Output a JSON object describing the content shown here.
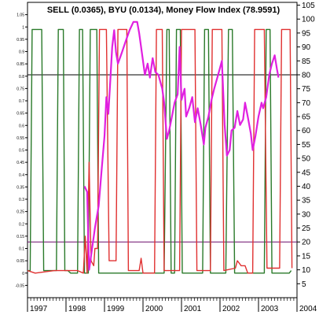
{
  "chart_data": {
    "type": "line",
    "title": "SELL (0.0365), BYU (0.0134), Money Flow Index (78.9591)",
    "x_ticks": [
      "1997",
      "1998",
      "1999",
      "2000",
      "2001",
      "2002",
      "2003",
      "2004"
    ],
    "x_range": [
      1997.0,
      2004.0
    ],
    "right_axis": {
      "ticks": [
        "105",
        "100",
        "95",
        "90",
        "85",
        "80",
        "75",
        "70",
        "65",
        "60",
        "55",
        "50",
        "45",
        "40",
        "35",
        "30",
        "25",
        "20",
        "15",
        "10",
        "5"
      ],
      "ylim": [
        0,
        106
      ]
    },
    "left_axis": {
      "ticks": [
        "1.05",
        "1",
        "0.95",
        "0.9",
        "0.85",
        "0.8",
        "0.75",
        "0.7",
        "0.65",
        "0.6",
        "0.55",
        "0.5",
        "0.45",
        "0.4",
        "0.35",
        "0.3",
        "0.25",
        "0.2",
        "0.15",
        "0.1",
        "0.05",
        "0",
        "-0.05"
      ],
      "ylim": [
        -0.1,
        1.1
      ]
    },
    "reference_lines": [
      {
        "value": 80,
        "color": "#000000"
      },
      {
        "value": 20,
        "color": "#6a0a6a"
      }
    ],
    "grid": false,
    "series": [
      {
        "color": "#2a7a2a",
        "axis": "left",
        "points": [
          [
            1997.0,
            0.01
          ],
          [
            1997.07,
            0.01
          ],
          [
            1997.12,
            0.99
          ],
          [
            1997.37,
            0.99
          ],
          [
            1997.42,
            0.01
          ],
          [
            1997.75,
            0.01
          ],
          [
            1997.8,
            0.99
          ],
          [
            1997.93,
            0.99
          ],
          [
            1997.97,
            0.01
          ],
          [
            1998.05,
            0.01
          ],
          [
            1998.12,
            0.0
          ],
          [
            1998.3,
            0.0
          ],
          [
            1998.35,
            0.99
          ],
          [
            1998.43,
            0.99
          ],
          [
            1998.48,
            0.0
          ],
          [
            1998.58,
            0.0
          ],
          [
            1998.63,
            0.99
          ],
          [
            1998.8,
            0.99
          ],
          [
            1998.85,
            0.0
          ],
          [
            1999.6,
            0.0
          ],
          [
            1999.65,
            0.0
          ],
          [
            2000.55,
            0.0
          ],
          [
            2000.62,
            0.99
          ],
          [
            2000.68,
            0.99
          ],
          [
            2000.73,
            0.0
          ],
          [
            2000.82,
            0.0
          ],
          [
            2000.87,
            0.99
          ],
          [
            2000.97,
            0.99
          ],
          [
            2001.02,
            0.0
          ],
          [
            2001.55,
            0.0
          ],
          [
            2001.6,
            0.99
          ],
          [
            2001.7,
            0.99
          ],
          [
            2001.75,
            0.0
          ],
          [
            2002.15,
            0.0
          ],
          [
            2002.22,
            0.99
          ],
          [
            2002.32,
            0.99
          ],
          [
            2002.38,
            0.0
          ],
          [
            2003.15,
            0.0
          ],
          [
            2003.2,
            0.99
          ],
          [
            2003.3,
            0.99
          ],
          [
            2003.35,
            0.0
          ],
          [
            2003.8,
            0.0
          ],
          [
            2003.85,
            0.01
          ]
        ]
      },
      {
        "color": "#e03030",
        "axis": "left",
        "points": [
          [
            1997.0,
            0.01
          ],
          [
            1997.2,
            0.0
          ],
          [
            1997.7,
            0.01
          ],
          [
            1998.0,
            0.01
          ],
          [
            1998.3,
            0.01
          ],
          [
            1998.45,
            0.0
          ],
          [
            1998.5,
            0.15
          ],
          [
            1998.55,
            0.0
          ],
          [
            1998.6,
            0.45
          ],
          [
            1998.65,
            0.05
          ],
          [
            1998.72,
            0.03
          ],
          [
            1998.75,
            0.1
          ],
          [
            1998.82,
            0.1
          ],
          [
            1998.87,
            0.99
          ],
          [
            1999.05,
            0.99
          ],
          [
            1999.12,
            0.05
          ],
          [
            1999.3,
            0.05
          ],
          [
            1999.35,
            0.99
          ],
          [
            1999.58,
            0.99
          ],
          [
            1999.62,
            0.01
          ],
          [
            1999.9,
            0.01
          ],
          [
            1999.95,
            0.06
          ],
          [
            2000.0,
            0.0
          ],
          [
            2000.3,
            0.0
          ],
          [
            2000.35,
            0.99
          ],
          [
            2000.5,
            0.99
          ],
          [
            2000.55,
            0.01
          ],
          [
            2000.95,
            0.01
          ],
          [
            2001.0,
            0.99
          ],
          [
            2001.35,
            0.99
          ],
          [
            2001.4,
            0.01
          ],
          [
            2001.75,
            0.01
          ],
          [
            2001.8,
            0.99
          ],
          [
            2002.05,
            0.99
          ],
          [
            2002.1,
            0.01
          ],
          [
            2002.4,
            0.02
          ],
          [
            2002.45,
            0.05
          ],
          [
            2002.55,
            0.03
          ],
          [
            2002.65,
            0.03
          ],
          [
            2002.72,
            0.0
          ],
          [
            2002.85,
            0.0
          ],
          [
            2002.9,
            0.99
          ],
          [
            2003.15,
            0.99
          ],
          [
            2003.22,
            0.02
          ],
          [
            2003.55,
            0.02
          ],
          [
            2003.6,
            0.99
          ],
          [
            2003.82,
            0.99
          ],
          [
            2003.87,
            0.02
          ]
        ]
      },
      {
        "color": "#e020e0",
        "axis": "right",
        "points": [
          [
            1998.48,
            40
          ],
          [
            1998.55,
            38
          ],
          [
            1998.6,
            10
          ],
          [
            1998.65,
            15
          ],
          [
            1998.75,
            25
          ],
          [
            1998.85,
            33
          ],
          [
            1998.92,
            45
          ],
          [
            1999.0,
            58
          ],
          [
            1999.05,
            72
          ],
          [
            1999.1,
            66
          ],
          [
            1999.15,
            78
          ],
          [
            1999.2,
            90
          ],
          [
            1999.25,
            96
          ],
          [
            1999.3,
            88
          ],
          [
            1999.35,
            84
          ],
          [
            1999.45,
            88
          ],
          [
            1999.55,
            92
          ],
          [
            1999.65,
            96
          ],
          [
            1999.75,
            99
          ],
          [
            1999.85,
            99
          ],
          [
            1999.9,
            95
          ],
          [
            2000.0,
            85
          ],
          [
            2000.05,
            80
          ],
          [
            2000.12,
            84
          ],
          [
            2000.18,
            79
          ],
          [
            2000.25,
            86
          ],
          [
            2000.32,
            81
          ],
          [
            2000.4,
            80
          ],
          [
            2000.5,
            75
          ],
          [
            2000.55,
            70
          ],
          [
            2000.62,
            57
          ],
          [
            2000.68,
            60
          ],
          [
            2000.75,
            65
          ],
          [
            2000.82,
            70
          ],
          [
            2000.9,
            73
          ],
          [
            2000.95,
            90
          ],
          [
            2001.0,
            71
          ],
          [
            2001.08,
            75
          ],
          [
            2001.12,
            65
          ],
          [
            2001.2,
            68
          ],
          [
            2001.28,
            72
          ],
          [
            2001.35,
            63
          ],
          [
            2001.42,
            68
          ],
          [
            2001.5,
            62
          ],
          [
            2001.58,
            55
          ],
          [
            2001.62,
            61
          ],
          [
            2001.7,
            65
          ],
          [
            2001.78,
            71
          ],
          [
            2001.85,
            75
          ],
          [
            2001.95,
            80
          ],
          [
            2002.05,
            85
          ],
          [
            2002.12,
            62
          ],
          [
            2002.18,
            51
          ],
          [
            2002.25,
            53
          ],
          [
            2002.3,
            60
          ],
          [
            2002.38,
            61
          ],
          [
            2002.45,
            67
          ],
          [
            2002.52,
            62
          ],
          [
            2002.6,
            64
          ],
          [
            2002.65,
            70
          ],
          [
            2002.72,
            65
          ],
          [
            2002.8,
            59
          ],
          [
            2002.85,
            53
          ],
          [
            2002.92,
            58
          ],
          [
            2003.0,
            65
          ],
          [
            2003.08,
            70
          ],
          [
            2003.12,
            68
          ],
          [
            2003.2,
            72
          ],
          [
            2003.28,
            80
          ],
          [
            2003.35,
            84
          ],
          [
            2003.42,
            87
          ],
          [
            2003.48,
            82
          ],
          [
            2003.52,
            79
          ]
        ]
      }
    ]
  }
}
